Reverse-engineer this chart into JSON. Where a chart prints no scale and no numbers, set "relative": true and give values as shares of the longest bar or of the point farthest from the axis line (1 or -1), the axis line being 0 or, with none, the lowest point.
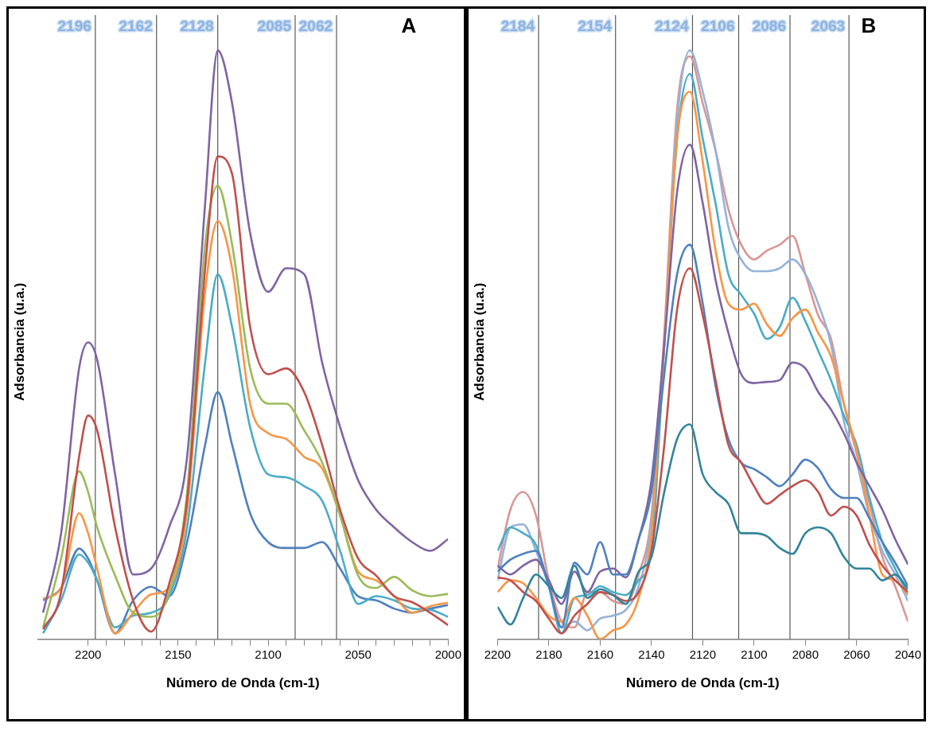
{
  "chart_data": [
    {
      "type": "line",
      "relative": true,
      "xlabel": "Número de Onda (cm-1)",
      "ylabel": "Adsorbancia (u.a.)",
      "annotations": [
        "A"
      ],
      "xlim": [
        2228,
        2000
      ],
      "xticks": [
        2200,
        {
          "value": 2190,
          "label": null
        },
        {
          "value": 2180,
          "label": null
        },
        {
          "value": 2170,
          "label": null
        },
        {
          "value": 2160,
          "label": null
        },
        2150,
        {
          "value": 2140,
          "label": null
        },
        {
          "value": 2130,
          "label": null
        },
        {
          "value": 2120,
          "label": null
        },
        {
          "value": 2110,
          "label": null
        },
        2100,
        {
          "value": 2090,
          "label": null
        },
        {
          "value": 2080,
          "label": null
        },
        {
          "value": 2070,
          "label": null
        },
        {
          "value": 2060,
          "label": null
        },
        2050,
        {
          "value": 2040,
          "label": null
        },
        {
          "value": 2030,
          "label": null
        },
        {
          "value": 2020,
          "label": null
        },
        {
          "value": 2010,
          "label": null
        },
        2000
      ],
      "ref_lines": [
        {
          "axis": "x",
          "value": 2196,
          "label": "2196",
          "color": "#595959"
        },
        {
          "axis": "x",
          "value": 2162,
          "label": "2162",
          "color": "#595959"
        },
        {
          "axis": "x",
          "value": 2128,
          "label": "2128",
          "color": "#595959"
        },
        {
          "axis": "x",
          "value": 2085,
          "label": "2085",
          "color": "#595959"
        },
        {
          "axis": "x",
          "value": 2062,
          "label": "2062",
          "color": "#595959"
        }
      ],
      "x": [
        2225,
        2215,
        2205,
        2200,
        2195,
        2185,
        2175,
        2165,
        2155,
        2145,
        2135,
        2128,
        2120,
        2110,
        2100,
        2090,
        2080,
        2070,
        2060,
        2050,
        2040,
        2030,
        2020,
        2010,
        2000
      ],
      "series": [
        {
          "color": "#8064a2",
          "values": [
            0.045,
            0.18,
            0.46,
            0.504,
            0.475,
            0.28,
            0.11,
            0.12,
            0.19,
            0.31,
            0.74,
            1.0,
            0.91,
            0.69,
            0.59,
            0.63,
            0.62,
            0.47,
            0.36,
            0.27,
            0.22,
            0.19,
            0.165,
            0.15,
            0.17
          ]
        },
        {
          "color": "#c0504d",
          "values": [
            0.017,
            0.08,
            0.31,
            0.38,
            0.355,
            0.19,
            0.066,
            0.013,
            0.094,
            0.235,
            0.63,
            0.82,
            0.79,
            0.53,
            0.45,
            0.46,
            0.42,
            0.33,
            0.22,
            0.137,
            0.108,
            0.073,
            0.063,
            0.045,
            0.024
          ]
        },
        {
          "color": "#9bbb59",
          "values": [
            0.02,
            0.137,
            0.285,
            0.25,
            0.19,
            0.108,
            0.045,
            0.038,
            0.08,
            0.25,
            0.67,
            0.77,
            0.67,
            0.46,
            0.4,
            0.4,
            0.355,
            0.3,
            0.21,
            0.108,
            0.087,
            0.106,
            0.083,
            0.073,
            0.077
          ]
        },
        {
          "color": "#f79646",
          "values": [
            0.069,
            0.087,
            0.214,
            0.18,
            0.12,
            0.01,
            0.045,
            0.076,
            0.087,
            0.22,
            0.59,
            0.71,
            0.63,
            0.4,
            0.35,
            0.34,
            0.31,
            0.29,
            0.21,
            0.115,
            0.1,
            0.073,
            0.045,
            0.056,
            0.062
          ]
        },
        {
          "color": "#4bacc6",
          "values": [
            0.01,
            0.066,
            0.144,
            0.13,
            0.1,
            0.02,
            0.04,
            0.045,
            0.073,
            0.19,
            0.47,
            0.62,
            0.53,
            0.36,
            0.28,
            0.275,
            0.26,
            0.235,
            0.15,
            0.06,
            0.073,
            0.066,
            0.052,
            0.05,
            0.038
          ]
        },
        {
          "color": "#4f81bd",
          "values": [
            0.066,
            0.087,
            0.154,
            0.137,
            0.1,
            0.01,
            0.066,
            0.089,
            0.073,
            0.165,
            0.33,
            0.42,
            0.33,
            0.214,
            0.165,
            0.155,
            0.155,
            0.165,
            0.12,
            0.073,
            0.066,
            0.052,
            0.045,
            0.052,
            0.058
          ]
        }
      ]
    },
    {
      "type": "line",
      "relative": true,
      "xlabel": "Número de Onda (cm-1)",
      "ylabel": "Adsorbancia (u.a.)",
      "annotations": [
        "B"
      ],
      "xlim": [
        2200,
        2040
      ],
      "xticks": [
        2200,
        2180,
        2160,
        2140,
        2120,
        2100,
        2080,
        2060,
        2040
      ],
      "ref_lines": [
        {
          "axis": "x",
          "value": 2184,
          "label": "2184",
          "color": "#595959"
        },
        {
          "axis": "x",
          "value": 2154,
          "label": "2154",
          "color": "#595959"
        },
        {
          "axis": "x",
          "value": 2124,
          "label": "2124",
          "color": "#595959"
        },
        {
          "axis": "x",
          "value": 2106,
          "label": "2106",
          "color": "#595959"
        },
        {
          "axis": "x",
          "value": 2086,
          "label": "2086",
          "color": "#595959"
        },
        {
          "axis": "x",
          "value": 2063,
          "label": "2063",
          "color": "#595959"
        }
      ],
      "x": [
        2200,
        2195,
        2190,
        2185,
        2180,
        2175,
        2170,
        2165,
        2160,
        2155,
        2150,
        2145,
        2140,
        2135,
        2130,
        2125,
        2120,
        2115,
        2110,
        2105,
        2100,
        2095,
        2090,
        2085,
        2080,
        2075,
        2070,
        2065,
        2060,
        2055,
        2050,
        2045,
        2040
      ],
      "series": [
        {
          "color": "#31859c",
          "values": [
            0.055,
            0.025,
            0.07,
            0.11,
            0.09,
            0.07,
            0.125,
            0.07,
            0.085,
            0.075,
            0.06,
            0.115,
            0.14,
            0.25,
            0.34,
            0.365,
            0.28,
            0.25,
            0.23,
            0.18,
            0.18,
            0.175,
            0.155,
            0.145,
            0.18,
            0.19,
            0.18,
            0.14,
            0.12,
            0.12,
            0.1,
            0.11,
            0.085
          ]
        },
        {
          "color": "#c0504d",
          "values": [
            0.105,
            0.1,
            0.08,
            0.065,
            0.035,
            0.01,
            0.04,
            0.06,
            0.08,
            0.075,
            0.065,
            0.08,
            0.15,
            0.33,
            0.56,
            0.63,
            0.55,
            0.44,
            0.33,
            0.3,
            0.26,
            0.23,
            0.245,
            0.26,
            0.27,
            0.25,
            0.21,
            0.225,
            0.21,
            0.16,
            0.125,
            0.1,
            0.08
          ]
        },
        {
          "color": "#4f81bd",
          "values": [
            0.115,
            0.135,
            0.145,
            0.15,
            0.09,
            0.02,
            0.13,
            0.11,
            0.165,
            0.11,
            0.11,
            0.17,
            0.25,
            0.45,
            0.62,
            0.67,
            0.57,
            0.43,
            0.34,
            0.3,
            0.289,
            0.275,
            0.26,
            0.28,
            0.305,
            0.29,
            0.255,
            0.24,
            0.24,
            0.205,
            0.165,
            0.13,
            0.09
          ]
        },
        {
          "color": "#8064a2",
          "values": [
            0.125,
            0.11,
            0.125,
            0.135,
            0.1,
            0.06,
            0.115,
            0.08,
            0.115,
            0.12,
            0.105,
            0.17,
            0.27,
            0.5,
            0.76,
            0.84,
            0.74,
            0.61,
            0.52,
            0.45,
            0.435,
            0.437,
            0.44,
            0.47,
            0.46,
            0.42,
            0.39,
            0.35,
            0.3,
            0.26,
            0.22,
            0.17,
            0.127
          ]
        },
        {
          "color": "#f79646",
          "values": [
            0.08,
            0.1,
            0.095,
            0.07,
            0.04,
            0.03,
            0.07,
            0.04,
            0.0,
            0.015,
            0.025,
            0.07,
            0.18,
            0.5,
            0.85,
            0.93,
            0.81,
            0.66,
            0.57,
            0.56,
            0.57,
            0.535,
            0.515,
            0.545,
            0.56,
            0.52,
            0.48,
            0.4,
            0.32,
            0.21,
            0.11,
            0.1,
            0.075
          ]
        },
        {
          "color": "#4bacc6",
          "values": [
            0.15,
            0.19,
            0.18,
            0.16,
            0.09,
            0.01,
            0.07,
            0.075,
            0.09,
            0.08,
            0.075,
            0.1,
            0.15,
            0.5,
            0.85,
            0.96,
            0.85,
            0.74,
            0.62,
            0.585,
            0.553,
            0.51,
            0.53,
            0.58,
            0.54,
            0.49,
            0.44,
            0.38,
            0.33,
            0.24,
            0.165,
            0.12,
            0.075
          ]
        },
        {
          "color": "#95b3d7",
          "values": [
            0.1,
            0.19,
            0.195,
            0.15,
            0.09,
            0.02,
            0.03,
            0.015,
            0.035,
            0.04,
            0.05,
            0.09,
            0.2,
            0.5,
            0.88,
            1.0,
            0.93,
            0.83,
            0.7,
            0.645,
            0.625,
            0.625,
            0.63,
            0.645,
            0.62,
            0.57,
            0.5,
            0.37,
            0.3,
            0.21,
            0.15,
            0.11,
            0.065
          ]
        },
        {
          "color": "#d99694",
          "values": [
            0.12,
            0.22,
            0.25,
            0.21,
            0.1,
            0.03,
            0.02,
            0.08,
            0.08,
            0.065,
            0.06,
            0.11,
            0.21,
            0.52,
            0.9,
            0.99,
            0.91,
            0.83,
            0.73,
            0.67,
            0.645,
            0.66,
            0.67,
            0.685,
            0.62,
            0.55,
            0.51,
            0.4,
            0.315,
            0.23,
            0.14,
            0.09,
            0.03
          ]
        }
      ]
    }
  ]
}
